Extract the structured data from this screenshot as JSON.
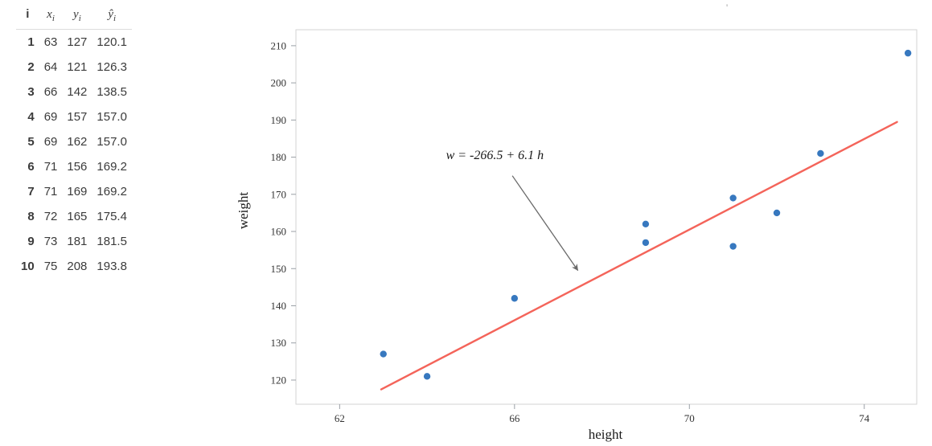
{
  "table": {
    "headers": [
      {
        "base": "i",
        "sub": ""
      },
      {
        "base": "x",
        "sub": "i"
      },
      {
        "base": "y",
        "sub": "i"
      },
      {
        "base": "ŷ",
        "sub": "i"
      }
    ],
    "rows": [
      [
        "1",
        "63",
        "127",
        "120.1"
      ],
      [
        "2",
        "64",
        "121",
        "126.3"
      ],
      [
        "3",
        "66",
        "142",
        "138.5"
      ],
      [
        "4",
        "69",
        "157",
        "157.0"
      ],
      [
        "5",
        "69",
        "162",
        "157.0"
      ],
      [
        "6",
        "71",
        "156",
        "169.2"
      ],
      [
        "7",
        "71",
        "169",
        "169.2"
      ],
      [
        "8",
        "72",
        "165",
        "175.4"
      ],
      [
        "9",
        "73",
        "181",
        "181.5"
      ],
      [
        "10",
        "75",
        "208",
        "193.8"
      ]
    ]
  },
  "stray_mark": "'",
  "chart_data": {
    "type": "scatter",
    "title": "",
    "xlabel": "height",
    "ylabel": "weight",
    "points": [
      [
        63,
        127
      ],
      [
        64,
        121
      ],
      [
        66,
        142
      ],
      [
        69,
        157
      ],
      [
        69,
        162
      ],
      [
        71,
        156
      ],
      [
        71,
        169
      ],
      [
        72,
        165
      ],
      [
        73,
        181
      ],
      [
        75,
        208
      ]
    ],
    "x_ticks": [
      62,
      66,
      70,
      74
    ],
    "y_ticks": [
      120,
      130,
      140,
      150,
      160,
      170,
      180,
      190,
      200,
      210
    ],
    "xlim": [
      61.0,
      75.2
    ],
    "ylim": [
      113.5,
      214.3
    ],
    "grid": false,
    "legend": "none",
    "point_color": "#3778bf",
    "line_color": "#f4645a",
    "border_color": "#d3d3d3",
    "tick_color": "#9aa0a6",
    "arrow_color": "#696969",
    "regression": {
      "label": "w = -266.5 + 6.1 h",
      "intercept": -266.5,
      "slope": 6.1,
      "x_start": 62.95,
      "x_end": 74.75
    },
    "annotation": {
      "text": "w = -266.5 + 6.1 h",
      "text_pos": [
        65.55,
        179.5
      ],
      "arrow_from": [
        65.95,
        175.0
      ],
      "arrow_to": [
        67.45,
        149.5
      ]
    }
  }
}
